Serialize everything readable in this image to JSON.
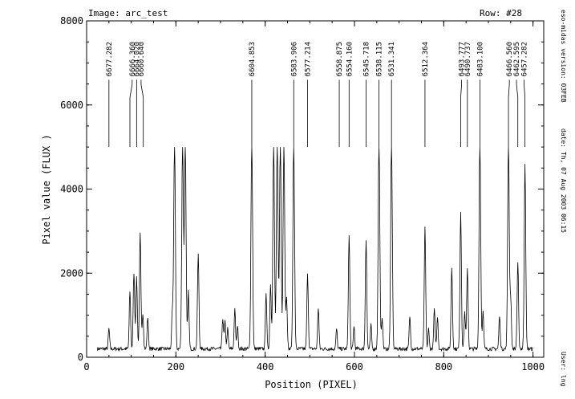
{
  "chart_data": {
    "type": "line",
    "header_left": "Image: arc_test",
    "header_right": "Row: #28",
    "xlabel": "Position (PIXEL)",
    "ylabel": "Pixel value (FLUX )",
    "xlim": [
      0,
      1024
    ],
    "ylim": [
      0,
      8000
    ],
    "x_ticks": [
      0,
      200,
      400,
      600,
      800,
      1000
    ],
    "y_ticks": [
      0,
      2000,
      4000,
      6000,
      8000
    ],
    "x_minor_step": 50,
    "y_minor_step": 500,
    "side_labels": [
      "eso-midas version: 03FEB",
      "date: Th, 07 Aug 2003 06:15",
      "User: lng"
    ],
    "baseline": 200,
    "peaks": [
      {
        "x": 50,
        "y": 480,
        "w": 1.5
      },
      {
        "x": 97,
        "y": 1370,
        "w": 1.5
      },
      {
        "x": 106,
        "y": 1820,
        "w": 1.6
      },
      {
        "x": 112,
        "y": 1680,
        "w": 1.6
      },
      {
        "x": 120,
        "y": 2730,
        "w": 1.6
      },
      {
        "x": 126,
        "y": 860,
        "w": 1.5
      },
      {
        "x": 137,
        "y": 760,
        "w": 1.5
      },
      {
        "x": 192,
        "y": 860,
        "w": 1.5
      },
      {
        "x": 197,
        "y": 5000,
        "w": 1.8
      },
      {
        "x": 215,
        "y": 5000,
        "w": 1.8
      },
      {
        "x": 221,
        "y": 5000,
        "w": 1.8
      },
      {
        "x": 228,
        "y": 1360,
        "w": 1.5
      },
      {
        "x": 250,
        "y": 2250,
        "w": 1.6
      },
      {
        "x": 305,
        "y": 740,
        "w": 1.5
      },
      {
        "x": 310,
        "y": 640,
        "w": 1.5
      },
      {
        "x": 316,
        "y": 480,
        "w": 1.4
      },
      {
        "x": 332,
        "y": 930,
        "w": 1.5
      },
      {
        "x": 338,
        "y": 560,
        "w": 1.4
      },
      {
        "x": 370,
        "y": 5000,
        "w": 1.8
      },
      {
        "x": 402,
        "y": 1360,
        "w": 1.5
      },
      {
        "x": 412,
        "y": 1560,
        "w": 1.5
      },
      {
        "x": 419,
        "y": 5000,
        "w": 1.8
      },
      {
        "x": 427,
        "y": 5000,
        "w": 1.8
      },
      {
        "x": 434,
        "y": 5000,
        "w": 1.8
      },
      {
        "x": 442,
        "y": 5000,
        "w": 1.8
      },
      {
        "x": 448,
        "y": 1250,
        "w": 1.5
      },
      {
        "x": 464,
        "y": 5000,
        "w": 1.8
      },
      {
        "x": 495,
        "y": 1760,
        "w": 1.6
      },
      {
        "x": 519,
        "y": 980,
        "w": 1.5
      },
      {
        "x": 560,
        "y": 480,
        "w": 1.4
      },
      {
        "x": 588,
        "y": 2680,
        "w": 1.6
      },
      {
        "x": 599,
        "y": 560,
        "w": 1.4
      },
      {
        "x": 626,
        "y": 2620,
        "w": 1.6
      },
      {
        "x": 637,
        "y": 580,
        "w": 1.4
      },
      {
        "x": 655,
        "y": 5000,
        "w": 1.8
      },
      {
        "x": 662,
        "y": 760,
        "w": 1.5
      },
      {
        "x": 683,
        "y": 5000,
        "w": 1.8
      },
      {
        "x": 724,
        "y": 780,
        "w": 1.5
      },
      {
        "x": 758,
        "y": 2870,
        "w": 1.6
      },
      {
        "x": 766,
        "y": 480,
        "w": 1.4
      },
      {
        "x": 779,
        "y": 950,
        "w": 1.5
      },
      {
        "x": 786,
        "y": 760,
        "w": 1.5
      },
      {
        "x": 818,
        "y": 1930,
        "w": 1.6
      },
      {
        "x": 838,
        "y": 3270,
        "w": 1.6
      },
      {
        "x": 847,
        "y": 880,
        "w": 1.5
      },
      {
        "x": 853,
        "y": 1900,
        "w": 1.6
      },
      {
        "x": 881,
        "y": 5000,
        "w": 1.8
      },
      {
        "x": 888,
        "y": 880,
        "w": 1.5
      },
      {
        "x": 925,
        "y": 780,
        "w": 1.5
      },
      {
        "x": 945,
        "y": 5000,
        "w": 1.8
      },
      {
        "x": 950,
        "y": 1200,
        "w": 1.5
      },
      {
        "x": 966,
        "y": 2030,
        "w": 1.6
      },
      {
        "x": 982,
        "y": 4420,
        "w": 1.7
      }
    ],
    "line_ids": [
      {
        "label": "6677.282",
        "x": 50,
        "line_x": 50
      },
      {
        "label": "6666.360",
        "x": 102,
        "line_x": 97
      },
      {
        "label": "6664.020",
        "x": 112,
        "line_x": 112
      },
      {
        "label": "6660.640",
        "x": 122,
        "line_x": 127
      },
      {
        "label": "6604.853",
        "x": 370,
        "line_x": 370
      },
      {
        "label": "6583.906",
        "x": 464,
        "line_x": 464
      },
      {
        "label": "6577.214",
        "x": 495,
        "line_x": 495
      },
      {
        "label": "6558.875",
        "x": 566,
        "line_x": 566
      },
      {
        "label": "6554.160",
        "x": 588,
        "line_x": 588
      },
      {
        "label": "6545.718",
        "x": 626,
        "line_x": 626
      },
      {
        "label": "6538.115",
        "x": 655,
        "line_x": 655
      },
      {
        "label": "6531.341",
        "x": 683,
        "line_x": 683
      },
      {
        "label": "6512.364",
        "x": 758,
        "line_x": 758
      },
      {
        "label": "6493.777",
        "x": 840,
        "line_x": 838
      },
      {
        "label": "6490.737",
        "x": 853,
        "line_x": 853
      },
      {
        "label": "6483.100",
        "x": 881,
        "line_x": 881
      },
      {
        "label": "6466.560",
        "x": 947,
        "line_x": 945
      },
      {
        "label": "6462.595",
        "x": 963,
        "line_x": 966
      },
      {
        "label": "6457.282",
        "x": 980,
        "line_x": 982
      }
    ],
    "id_line_top": 6600,
    "id_line_bottom": 5000,
    "grid": false,
    "legend": "none"
  }
}
